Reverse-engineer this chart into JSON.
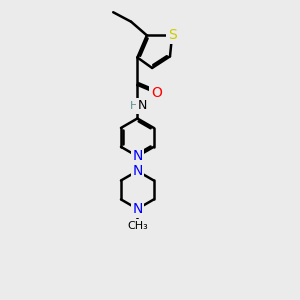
{
  "background_color": "#ebebeb",
  "atom_colors": {
    "C": "#000000",
    "H": "#5a9090",
    "N": "#0000ff",
    "O": "#ff0000",
    "S": "#cccc00"
  },
  "bond_color": "#000000",
  "bond_width": 1.8,
  "fig_size": [
    3.0,
    3.0
  ],
  "dpi": 100
}
